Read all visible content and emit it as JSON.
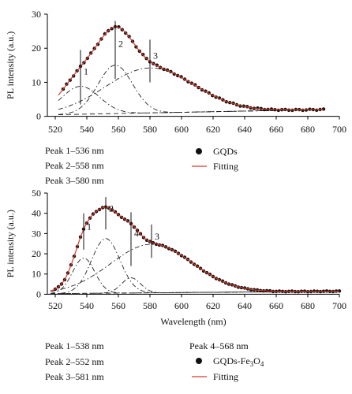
{
  "chart_data": [
    {
      "type": "line",
      "xlabel": "",
      "ylabel": "PL intensity (a.u.)",
      "xlim": [
        515,
        700
      ],
      "ylim": [
        -1,
        30
      ],
      "xticks": [
        520,
        540,
        560,
        580,
        600,
        620,
        640,
        660,
        680,
        700
      ],
      "yticks": [
        0,
        10,
        20,
        30
      ],
      "legend": [
        {
          "label": "GQDs",
          "marker": "dot"
        },
        {
          "label": "Fitting",
          "marker": "red-line"
        }
      ],
      "peak_list": [
        "Peak 1–536 nm",
        "Peak 2–558 nm",
        "Peak 3–580 nm"
      ],
      "peaks": [
        {
          "label": "1",
          "center": 536,
          "height": 8.2,
          "sigma": 12,
          "marker_top": 19.5,
          "marker_bottom": 3.5
        },
        {
          "label": "2",
          "center": 558,
          "height": 14.2,
          "sigma": 11,
          "marker_top": 28,
          "marker_bottom": 11
        },
        {
          "label": "3",
          "center": 580,
          "height": 13.2,
          "sigma": 28,
          "marker_top": 22.5,
          "marker_bottom": 10
        }
      ],
      "baseline": {
        "start": 0.5,
        "end": 2.0
      },
      "data_x_range": [
        525,
        690
      ],
      "data_step": 2.2,
      "colors": {
        "data": "#111111",
        "fit": "#d63a2a",
        "components": "#222222"
      }
    },
    {
      "type": "line",
      "xlabel": "Wavelength (nm)",
      "ylabel": "PL intensity (a.u.)",
      "xlim": [
        515,
        700
      ],
      "ylim": [
        -1,
        50
      ],
      "xticks": [
        520,
        540,
        560,
        580,
        600,
        620,
        640,
        660,
        680,
        700
      ],
      "yticks": [
        0,
        10,
        20,
        30,
        40,
        50
      ],
      "legend": [
        {
          "label": "GQDs-Fe3O4",
          "marker": "dot"
        },
        {
          "label": "Fitting",
          "marker": "red-line"
        }
      ],
      "peak_list": [
        "Peak 1–538 nm",
        "Peak 2–552 nm",
        "Peak 3–581 nm",
        "Peak 4–568 nm"
      ],
      "peaks": [
        {
          "label": "1",
          "center": 538,
          "height": 17.5,
          "sigma": 7,
          "marker_top": 40,
          "marker_bottom": 22
        },
        {
          "label": "2",
          "center": 552,
          "height": 27,
          "sigma": 9,
          "marker_top": 48,
          "marker_bottom": 32
        },
        {
          "label": "3",
          "center": 581,
          "height": 24,
          "sigma": 26,
          "marker_top": 34.5,
          "marker_bottom": 18
        },
        {
          "label": "4",
          "center": 568,
          "height": 7.5,
          "sigma": 6,
          "marker_top": 40.5,
          "marker_bottom": 14
        }
      ],
      "baseline": {
        "start": 0.3,
        "end": 1.5
      },
      "data_x_range": [
        520,
        700
      ],
      "data_step": 2.0,
      "colors": {
        "data": "#111111",
        "fit": "#d63a2a",
        "components": "#222222"
      }
    }
  ],
  "labels": {
    "top_ylabel": "PL intensity (a.u.)",
    "bottom_ylabel": "PL intensity (a.u.)",
    "bottom_xlabel": "Wavelength (nm)",
    "top_peaks": [
      "Peak 1–536 nm",
      "Peak 2–558 nm",
      "Peak 3–580 nm"
    ],
    "bottom_peaks_left": [
      "Peak 1–538 nm",
      "Peak 2–552 nm",
      "Peak 3–581 nm"
    ],
    "bottom_peak4": "Peak 4–568 nm",
    "top_legend_data": "GQDs",
    "top_legend_fit": "Fitting",
    "bottom_legend_data_main": "GQDs-Fe",
    "bottom_legend_data_sub1": "3",
    "bottom_legend_data_mid": "O",
    "bottom_legend_data_sub2": "4",
    "bottom_legend_fit": "Fitting"
  }
}
